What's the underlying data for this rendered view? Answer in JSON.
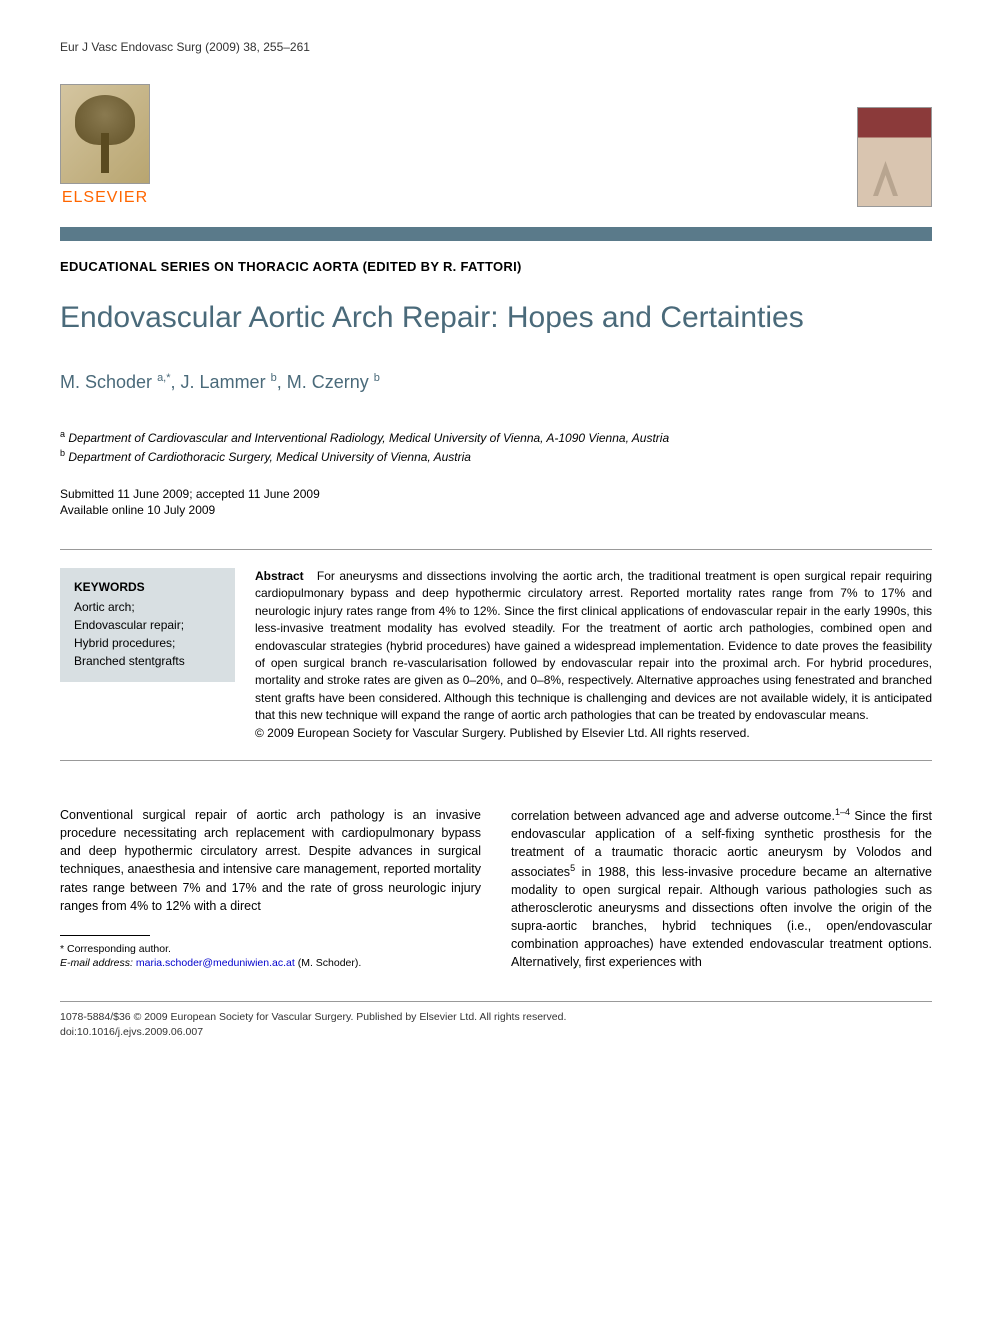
{
  "journal_ref": "Eur J Vasc Endovasc Surg (2009) 38, 255–261",
  "publisher": {
    "name": "ELSEVIER"
  },
  "series_title": "EDUCATIONAL SERIES ON THORACIC AORTA (EDITED BY R. FATTORI)",
  "article_title": "Endovascular Aortic Arch Repair: Hopes and Certainties",
  "authors_html": "M. Schoder <sup>a,</sup>*, J. Lammer <sup>b</sup>, M. Czerny <sup>b</sup>",
  "authors": [
    {
      "name": "M. Schoder",
      "marks": "a,*"
    },
    {
      "name": "J. Lammer",
      "marks": "b"
    },
    {
      "name": "M. Czerny",
      "marks": "b"
    }
  ],
  "affiliations": [
    {
      "mark": "a",
      "text": "Department of Cardiovascular and Interventional Radiology, Medical University of Vienna, A-1090 Vienna, Austria"
    },
    {
      "mark": "b",
      "text": "Department of Cardiothoracic Surgery, Medical University of Vienna, Austria"
    }
  ],
  "dates": {
    "submitted_accepted": "Submitted 11 June 2009; accepted 11 June 2009",
    "online": "Available online 10 July 2009"
  },
  "keywords": {
    "heading": "KEYWORDS",
    "items": [
      "Aortic arch;",
      "Endovascular repair;",
      "Hybrid procedures;",
      "Branched stentgrafts"
    ]
  },
  "abstract": {
    "label": "Abstract",
    "body": "For aneurysms and dissections involving the aortic arch, the traditional treatment is open surgical repair requiring cardiopulmonary bypass and deep hypothermic circulatory arrest. Reported mortality rates range from 7% to 17% and neurologic injury rates range from 4% to 12%. Since the first clinical applications of endovascular repair in the early 1990s, this less-invasive treatment modality has evolved steadily. For the treatment of aortic arch pathologies, combined open and endovascular strategies (hybrid procedures) have gained a widespread implementation. Evidence to date proves the feasibility of open surgical branch re-vascularisation followed by endovascular repair into the proximal arch. For hybrid procedures, mortality and stroke rates are given as 0–20%, and 0–8%, respectively. Alternative approaches using fenestrated and branched stent grafts have been considered. Although this technique is challenging and devices are not available widely, it is anticipated that this new technique will expand the range of aortic arch pathologies that can be treated by endovascular means.",
    "copyright": "© 2009 European Society for Vascular Surgery. Published by Elsevier Ltd. All rights reserved."
  },
  "body": {
    "col1": "Conventional surgical repair of aortic arch pathology is an invasive procedure necessitating arch replacement with cardiopulmonary bypass and deep hypothermic circulatory arrest. Despite advances in surgical techniques, anaesthesia and intensive care management, reported mortality rates range between 7% and 17% and the rate of gross neurologic injury ranges from 4% to 12% with a direct",
    "col2_part1": "correlation between advanced age and adverse outcome.",
    "col2_refs1": "1–4",
    "col2_part2": " Since the first endovascular application of a self-fixing synthetic prosthesis for the treatment of a traumatic thoracic aortic aneurysm by Volodos and associates",
    "col2_refs2": "5",
    "col2_part3": " in 1988, this less-invasive procedure became an alternative modality to open surgical repair. Although various pathologies such as atherosclerotic aneurysms and dissections often involve the origin of the supra-aortic branches, hybrid techniques (i.e., open/endovascular combination approaches) have extended endovascular treatment options. Alternatively, first experiences with"
  },
  "footnotes": {
    "corresponding": "* Corresponding author.",
    "email_label": "E-mail address:",
    "email": "maria.schoder@meduniwien.ac.at",
    "email_owner": "(M. Schoder)."
  },
  "bottom": {
    "line1": "1078-5884/$36 © 2009 European Society for Vascular Surgery. Published by Elsevier Ltd. All rights reserved.",
    "line2": "doi:10.1016/j.ejvs.2009.06.007"
  },
  "colors": {
    "divider_bar": "#5a7a8a",
    "title_color": "#4a6a7a",
    "keywords_bg": "#d8dfe2",
    "elsevier_orange": "#ff6600",
    "cover_top": "#8b3a3a",
    "link_blue": "#0000cc"
  }
}
